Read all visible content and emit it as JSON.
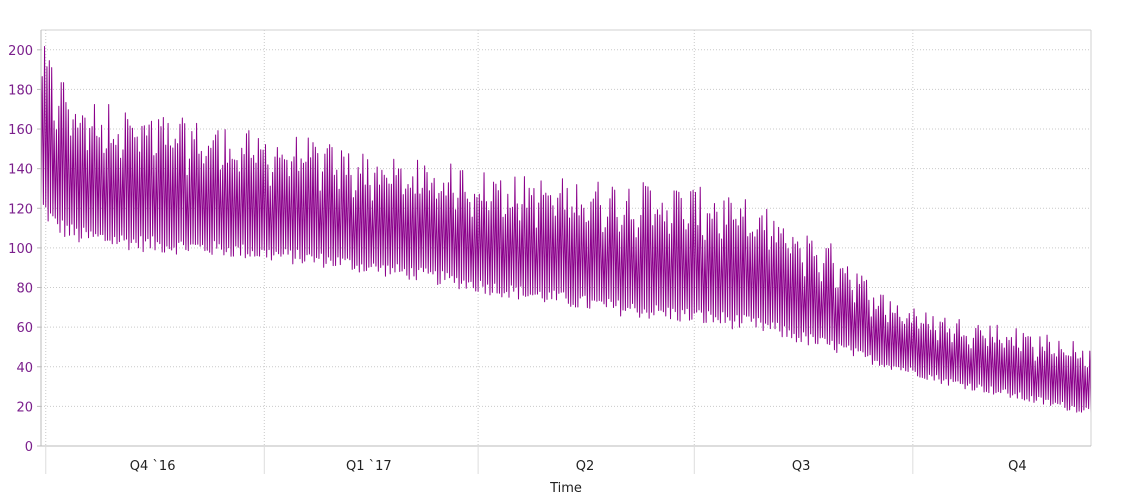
{
  "chart_data": {
    "type": "line",
    "title": "",
    "xlabel": "Time",
    "ylabel": "",
    "ylim": [
      0,
      210
    ],
    "yticks": [
      0,
      20,
      40,
      60,
      80,
      100,
      120,
      140,
      160,
      180,
      200
    ],
    "x_tick_labels": [
      "Q4 `16",
      "Q1 `17",
      "Q2",
      "Q3",
      "Q4"
    ],
    "x_range": [
      "2016-09-29",
      "2017-12-15"
    ],
    "x_tick_dates": [
      "2016-11-15",
      "2017-02-14",
      "2017-05-16",
      "2017-08-15",
      "2017-11-14"
    ],
    "x_gridline_dates": [
      "2016-10-01",
      "2017-01-01",
      "2017-04-01",
      "2017-07-01",
      "2017-10-01"
    ],
    "grid": true,
    "legend": "none",
    "series": [
      {
        "color": "#8b008b",
        "x": [
          "2016-09-29",
          "2016-10-05",
          "2016-10-15",
          "2016-11-01",
          "2016-11-15",
          "2016-12-01",
          "2016-12-15",
          "2017-01-01",
          "2017-01-15",
          "2017-02-01",
          "2017-02-15",
          "2017-03-01",
          "2017-03-15",
          "2017-04-01",
          "2017-04-15",
          "2017-05-01",
          "2017-05-15",
          "2017-06-01",
          "2017-06-15",
          "2017-07-01",
          "2017-07-15",
          "2017-08-01",
          "2017-08-15",
          "2017-09-01",
          "2017-09-15",
          "2017-10-01",
          "2017-10-15",
          "2017-11-01",
          "2017-11-15",
          "2017-12-01",
          "2017-12-15"
        ],
        "high": [
          205,
          192,
          178,
          172,
          168,
          165,
          162,
          158,
          157,
          152,
          148,
          145,
          144,
          140,
          137,
          136,
          135,
          134,
          133,
          131,
          129,
          120,
          110,
          100,
          80,
          70,
          66,
          63,
          60,
          55,
          52
        ],
        "low": [
          115,
          105,
          100,
          98,
          96,
          95,
          94,
          92,
          90,
          88,
          85,
          83,
          80,
          76,
          73,
          70,
          67,
          64,
          62,
          60,
          58,
          55,
          50,
          45,
          40,
          35,
          30,
          26,
          22,
          18,
          15
        ]
      }
    ]
  }
}
